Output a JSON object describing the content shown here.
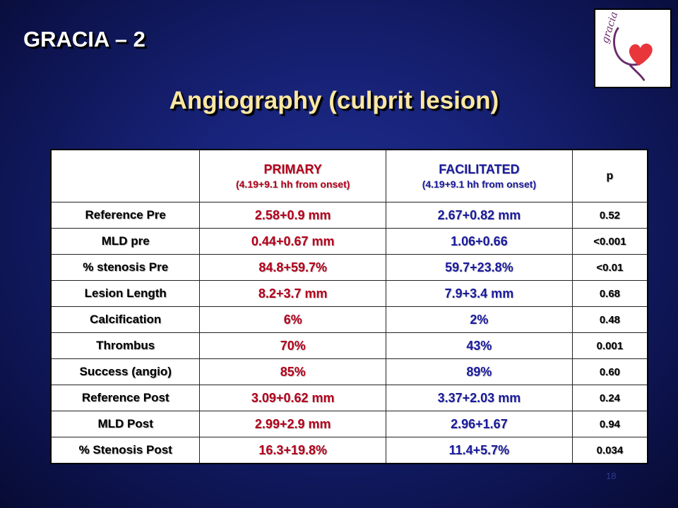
{
  "header": {
    "study_title": "GRACIA – 2",
    "slide_title": "Angiography (culprit lesion)"
  },
  "logo": {
    "text": "gracia",
    "icon": "heart-logo-icon",
    "heart_color": "#e8363a",
    "stroke_color": "#6a2c6a"
  },
  "table": {
    "columns": [
      {
        "label": "",
        "sub": ""
      },
      {
        "label": "PRIMARY",
        "sub": "(4.19+9.1 hh from onset)"
      },
      {
        "label": "FACILITATED",
        "sub": "(4.19+9.1 hh from onset)"
      },
      {
        "label": "p",
        "sub": ""
      }
    ],
    "rows": [
      {
        "label": "Reference Pre",
        "primary": "2.58+0.9 mm",
        "facilitated": "2.67+0.82 mm",
        "p": "0.52"
      },
      {
        "label": "MLD pre",
        "primary": "0.44+0.67 mm",
        "facilitated": "1.06+0.66",
        "p": "<0.001"
      },
      {
        "label": "% stenosis Pre",
        "primary": "84.8+59.7%",
        "facilitated": "59.7+23.8%",
        "p": "<0.01"
      },
      {
        "label": "Lesion Length",
        "primary": "8.2+3.7 mm",
        "facilitated": "7.9+3.4 mm",
        "p": "0.68"
      },
      {
        "label": "Calcification",
        "primary": "6%",
        "facilitated": "2%",
        "p": "0.48"
      },
      {
        "label": "Thrombus",
        "primary": "70%",
        "facilitated": "43%",
        "p": "0.001"
      },
      {
        "label": "Success (angio)",
        "primary": "85%",
        "facilitated": "89%",
        "p": "0.60"
      },
      {
        "label": "Reference Post",
        "primary": "3.09+0.62 mm",
        "facilitated": "3.37+2.03 mm",
        "p": "0.24"
      },
      {
        "label": "MLD Post",
        "primary": "2.99+2.9 mm",
        "facilitated": "2.96+1.67",
        "p": "0.94"
      },
      {
        "label": "% Stenosis Post",
        "primary": "16.3+19.8%",
        "facilitated": "11.4+5.7%",
        "p": "0.034"
      }
    ]
  },
  "footer": {
    "page_number": "18"
  },
  "colors": {
    "background": "#18237a",
    "title": "#fbe7a3",
    "primary": "#b3001b",
    "facilitated": "#1a1a9e"
  }
}
